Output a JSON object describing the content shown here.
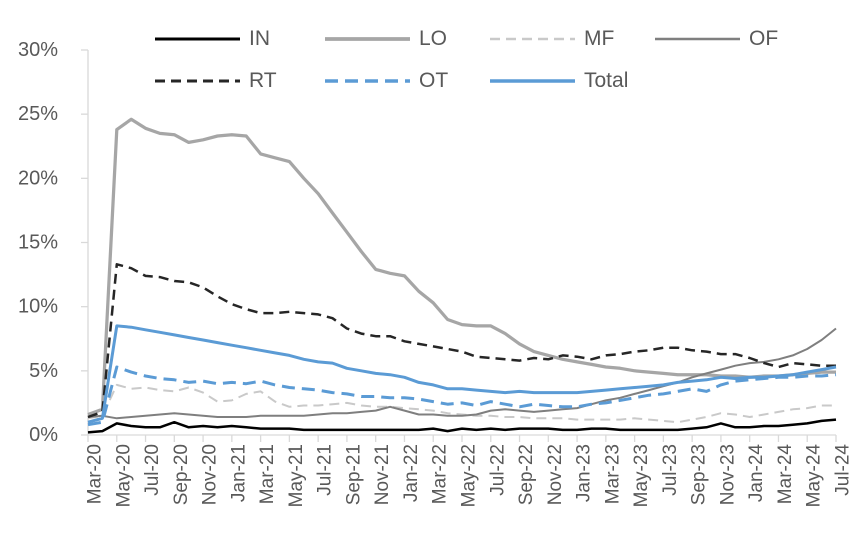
{
  "chart_data": {
    "type": "line",
    "title": "",
    "xlabel": "",
    "ylabel": "",
    "ylim": [
      0,
      30
    ],
    "ytick_step": 5,
    "ytick_labels": [
      "0%",
      "5%",
      "10%",
      "15%",
      "20%",
      "25%",
      "30%"
    ],
    "grid": false,
    "legend_position": "top",
    "axis_color": "#d9d9d9",
    "text_color": "#595959",
    "x": [
      "Mar-20",
      "Apr-20",
      "May-20",
      "Jun-20",
      "Jul-20",
      "Aug-20",
      "Sep-20",
      "Oct-20",
      "Nov-20",
      "Dec-20",
      "Jan-21",
      "Feb-21",
      "Mar-21",
      "Apr-21",
      "May-21",
      "Jun-21",
      "Jul-21",
      "Aug-21",
      "Sep-21",
      "Oct-21",
      "Nov-21",
      "Dec-21",
      "Jan-22",
      "Feb-22",
      "Mar-22",
      "Apr-22",
      "May-22",
      "Jun-22",
      "Jul-22",
      "Aug-22",
      "Sep-22",
      "Oct-22",
      "Nov-22",
      "Dec-22",
      "Jan-23",
      "Feb-23",
      "Mar-23",
      "Apr-23",
      "May-23",
      "Jun-23",
      "Jul-23",
      "Aug-23",
      "Sep-23",
      "Oct-23",
      "Nov-23",
      "Dec-23",
      "Jan-24",
      "Feb-24",
      "Mar-24",
      "Apr-24",
      "May-24",
      "Jun-24",
      "Jul-24"
    ],
    "x_tick_labels": [
      "Mar-20",
      "May-20",
      "Jul-20",
      "Sep-20",
      "Nov-20",
      "Jan-21",
      "Mar-21",
      "May-21",
      "Jul-21",
      "Sep-21",
      "Nov-21",
      "Jan-22",
      "Mar-22",
      "May-22",
      "Jul-22",
      "Sep-22",
      "Nov-22",
      "Jan-23",
      "Mar-23",
      "May-23",
      "Jul-23",
      "Sep-23",
      "Nov-23",
      "Jan-24",
      "Mar-24",
      "May-24",
      "Jul-24"
    ],
    "series": [
      {
        "name": "IN",
        "color": "#000000",
        "dash": "solid",
        "width": 2.5,
        "values": [
          0.2,
          0.3,
          0.9,
          0.7,
          0.6,
          0.6,
          1.0,
          0.6,
          0.7,
          0.6,
          0.7,
          0.6,
          0.5,
          0.5,
          0.5,
          0.4,
          0.4,
          0.4,
          0.4,
          0.4,
          0.4,
          0.4,
          0.4,
          0.4,
          0.5,
          0.3,
          0.5,
          0.4,
          0.5,
          0.4,
          0.5,
          0.5,
          0.5,
          0.4,
          0.4,
          0.5,
          0.5,
          0.4,
          0.4,
          0.4,
          0.4,
          0.4,
          0.5,
          0.6,
          0.9,
          0.6,
          0.6,
          0.7,
          0.7,
          0.8,
          0.9,
          1.1,
          1.2
        ]
      },
      {
        "name": "LO",
        "color": "#a6a6a6",
        "dash": "solid",
        "width": 3.25,
        "values": [
          1.6,
          2.0,
          23.8,
          24.6,
          23.9,
          23.5,
          23.4,
          22.8,
          23.0,
          23.3,
          23.4,
          23.3,
          21.9,
          21.6,
          21.3,
          20.0,
          18.8,
          17.3,
          15.8,
          14.3,
          12.9,
          12.6,
          12.4,
          11.2,
          10.3,
          9.0,
          8.6,
          8.5,
          8.5,
          7.9,
          7.1,
          6.5,
          6.2,
          5.9,
          5.7,
          5.5,
          5.3,
          5.2,
          5.0,
          4.9,
          4.8,
          4.7,
          4.7,
          4.7,
          4.6,
          4.6,
          4.5,
          4.6,
          4.6,
          4.7,
          4.8,
          4.9,
          4.9
        ]
      },
      {
        "name": "MF",
        "color": "#c9c9c9",
        "dash": "dashed",
        "width": 2,
        "values": [
          1.3,
          1.5,
          3.9,
          3.6,
          3.7,
          3.5,
          3.4,
          3.7,
          3.3,
          2.6,
          2.7,
          3.2,
          3.4,
          2.6,
          2.2,
          2.3,
          2.3,
          2.4,
          2.5,
          2.3,
          2.2,
          2.2,
          2.1,
          2.0,
          1.9,
          1.7,
          1.6,
          1.5,
          1.5,
          1.4,
          1.4,
          1.3,
          1.3,
          1.3,
          1.2,
          1.2,
          1.2,
          1.2,
          1.3,
          1.2,
          1.1,
          1.0,
          1.2,
          1.4,
          1.7,
          1.6,
          1.4,
          1.6,
          1.8,
          2.0,
          2.1,
          2.3,
          2.3
        ]
      },
      {
        "name": "OF",
        "color": "#7f7f7f",
        "dash": "solid",
        "width": 2,
        "values": [
          1.4,
          1.5,
          1.3,
          1.4,
          1.5,
          1.6,
          1.7,
          1.6,
          1.5,
          1.4,
          1.4,
          1.4,
          1.5,
          1.5,
          1.5,
          1.5,
          1.6,
          1.7,
          1.7,
          1.8,
          1.9,
          2.2,
          1.9,
          1.6,
          1.6,
          1.5,
          1.5,
          1.6,
          1.9,
          2.0,
          1.9,
          1.8,
          1.9,
          2.0,
          2.1,
          2.4,
          2.7,
          2.9,
          3.2,
          3.5,
          3.8,
          4.1,
          4.5,
          4.8,
          5.1,
          5.4,
          5.6,
          5.7,
          5.9,
          6.2,
          6.7,
          7.4,
          8.3
        ]
      },
      {
        "name": "RT",
        "color": "#262626",
        "dash": "dashed",
        "width": 2.5,
        "values": [
          1.4,
          1.8,
          13.3,
          13.0,
          12.4,
          12.3,
          12.0,
          11.9,
          11.5,
          10.8,
          10.2,
          9.8,
          9.5,
          9.5,
          9.6,
          9.5,
          9.4,
          9.1,
          8.3,
          7.9,
          7.7,
          7.7,
          7.3,
          7.1,
          6.9,
          6.7,
          6.5,
          6.1,
          6.0,
          5.9,
          5.8,
          6.0,
          5.9,
          6.2,
          6.1,
          5.9,
          6.2,
          6.3,
          6.5,
          6.6,
          6.8,
          6.8,
          6.6,
          6.5,
          6.3,
          6.3,
          6.0,
          5.6,
          5.3,
          5.6,
          5.5,
          5.4,
          5.4
        ]
      },
      {
        "name": "OT",
        "color": "#5b9bd5",
        "dash": "dashed",
        "width": 3,
        "values": [
          0.8,
          1.0,
          5.3,
          4.9,
          4.6,
          4.4,
          4.3,
          4.1,
          4.2,
          4.0,
          4.1,
          4.0,
          4.2,
          3.9,
          3.7,
          3.6,
          3.5,
          3.3,
          3.2,
          3.0,
          3.0,
          2.9,
          2.9,
          2.8,
          2.6,
          2.4,
          2.5,
          2.3,
          2.6,
          2.4,
          2.2,
          2.4,
          2.3,
          2.2,
          2.2,
          2.4,
          2.5,
          2.7,
          2.9,
          3.1,
          3.2,
          3.4,
          3.6,
          3.4,
          3.9,
          4.2,
          4.3,
          4.4,
          4.5,
          4.5,
          4.6,
          4.6,
          4.7
        ]
      },
      {
        "name": "Total",
        "color": "#5b9bd5",
        "dash": "solid",
        "width": 3,
        "values": [
          1.0,
          1.3,
          8.5,
          8.4,
          8.2,
          8.0,
          7.8,
          7.6,
          7.4,
          7.2,
          7.0,
          6.8,
          6.6,
          6.4,
          6.2,
          5.9,
          5.7,
          5.6,
          5.2,
          5.0,
          4.8,
          4.7,
          4.5,
          4.1,
          3.9,
          3.6,
          3.6,
          3.5,
          3.4,
          3.3,
          3.4,
          3.3,
          3.3,
          3.3,
          3.3,
          3.4,
          3.5,
          3.6,
          3.7,
          3.8,
          3.9,
          4.1,
          4.2,
          4.3,
          4.5,
          4.4,
          4.5,
          4.5,
          4.6,
          4.7,
          4.9,
          5.1,
          5.3
        ]
      }
    ]
  }
}
